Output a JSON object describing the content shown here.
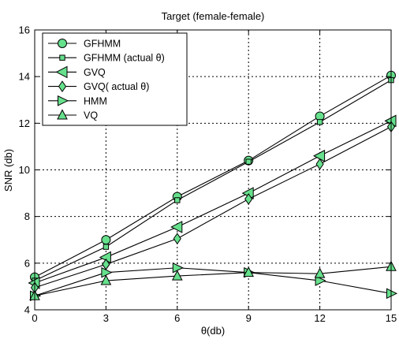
{
  "chart_data": {
    "type": "line",
    "title": "Target (female-female)",
    "xlabel": "θ(db)",
    "ylabel": "SNR (db)",
    "xlim": [
      0,
      15
    ],
    "ylim": [
      4,
      16
    ],
    "xticks": [
      "0",
      "3",
      "6",
      "9",
      "12",
      "15"
    ],
    "yticks": [
      "4",
      "6",
      "8",
      "10",
      "12",
      "14",
      "16"
    ],
    "grid": true,
    "legend_position": "top-left",
    "marker_fill": "#66e08c",
    "x": [
      0,
      3,
      6,
      9,
      12,
      15
    ],
    "series": [
      {
        "name": "GFHMM",
        "marker": "circle",
        "values": [
          5.4,
          7.0,
          8.85,
          10.4,
          12.3,
          14.05
        ]
      },
      {
        "name": "GFHMM (actual θ)",
        "marker": "square",
        "values": [
          5.25,
          6.7,
          8.7,
          10.35,
          12.05,
          13.85
        ]
      },
      {
        "name": "GVQ",
        "marker": "triangle-left",
        "values": [
          5.15,
          6.25,
          7.55,
          9.0,
          10.6,
          12.1
        ]
      },
      {
        "name": "GVQ( actual θ)",
        "marker": "diamond",
        "values": [
          4.95,
          5.95,
          7.05,
          8.75,
          10.25,
          11.85
        ]
      },
      {
        "name": "HMM",
        "marker": "triangle-right",
        "values": [
          4.6,
          5.6,
          5.8,
          5.6,
          5.25,
          4.7
        ]
      },
      {
        "name": "VQ",
        "marker": "triangle-up",
        "values": [
          4.6,
          5.25,
          5.45,
          5.6,
          5.55,
          5.85
        ]
      }
    ]
  }
}
